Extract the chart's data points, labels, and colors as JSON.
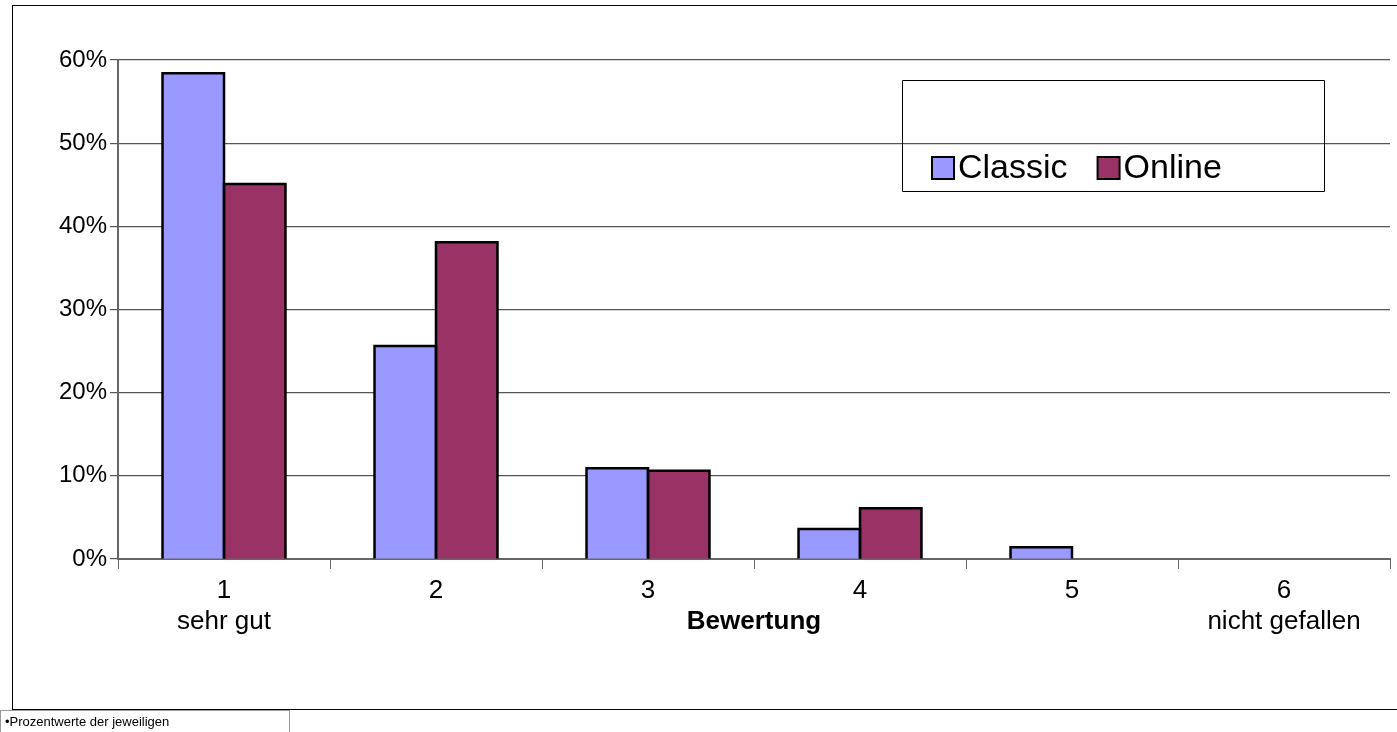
{
  "chart_data": {
    "type": "bar",
    "xlabel": "Bewertung",
    "categories": [
      "1\nsehr gut",
      "2",
      "3",
      "4",
      "5",
      "6\nnicht gefallen"
    ],
    "series": [
      {
        "name": "Classic",
        "color": "#9999ff",
        "values": [
          58.4,
          25.6,
          10.9,
          3.6,
          1.4,
          0
        ]
      },
      {
        "name": "Online",
        "color": "#993366",
        "values": [
          45.1,
          38.1,
          10.6,
          6.1,
          0,
          0
        ]
      }
    ],
    "ylim": [
      0,
      60
    ],
    "yticks": [
      {
        "value": 0,
        "label": "0%"
      },
      {
        "value": 10,
        "label": "10%"
      },
      {
        "value": 20,
        "label": "20%"
      },
      {
        "value": 30,
        "label": "30%"
      },
      {
        "value": 40,
        "label": "40%"
      },
      {
        "value": 50,
        "label": "50%"
      },
      {
        "value": 60,
        "label": "60%"
      }
    ],
    "grid": "y",
    "legend": "top right",
    "annotations": [
      "•Prozentwerte der jeweiligen"
    ]
  }
}
